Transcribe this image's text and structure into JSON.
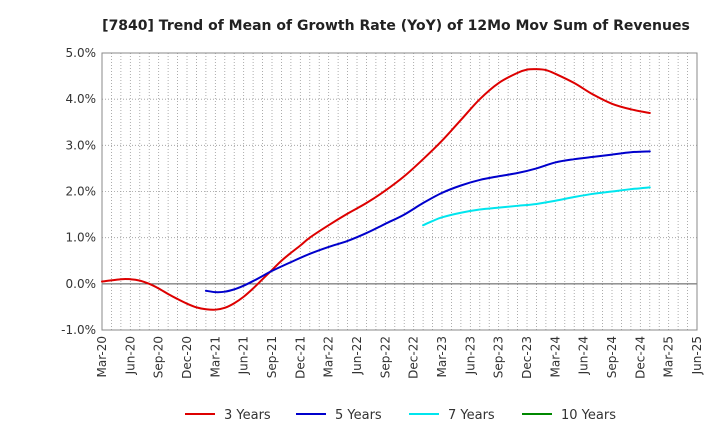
{
  "chart_data": {
    "type": "line",
    "title": "[7840]  Trend of Mean of Growth Rate (YoY) of 12Mo Mov Sum of Revenues",
    "xlabel": "",
    "ylabel": "",
    "ylim": [
      -1.0,
      5.0
    ],
    "y_ticks": [
      -1.0,
      0.0,
      1.0,
      2.0,
      3.0,
      4.0,
      5.0
    ],
    "y_tick_labels": [
      "-1.0%",
      "0.0%",
      "1.0%",
      "2.0%",
      "3.0%",
      "4.0%",
      "5.0%"
    ],
    "x_tick_labels": [
      "Mar-20",
      "Jun-20",
      "Sep-20",
      "Dec-20",
      "Mar-21",
      "Jun-21",
      "Sep-21",
      "Dec-21",
      "Mar-22",
      "Jun-22",
      "Sep-22",
      "Dec-22",
      "Mar-23",
      "Jun-23",
      "Sep-23",
      "Dec-23",
      "Mar-24",
      "Jun-24",
      "Sep-24",
      "Dec-24",
      "Mar-25",
      "Jun-25"
    ],
    "x_index_range": [
      0,
      63
    ],
    "grid": true,
    "legend_position": "bottom",
    "series": [
      {
        "name": "3 Years",
        "color": "#dd0000",
        "points": [
          [
            0,
            0.05
          ],
          [
            2,
            0.1
          ],
          [
            3,
            0.1
          ],
          [
            4,
            0.07
          ],
          [
            5,
            0.0
          ],
          [
            6,
            -0.1
          ],
          [
            7,
            -0.22
          ],
          [
            8,
            -0.33
          ],
          [
            9,
            -0.43
          ],
          [
            10,
            -0.51
          ],
          [
            11,
            -0.55
          ],
          [
            12,
            -0.56
          ],
          [
            13,
            -0.52
          ],
          [
            14,
            -0.42
          ],
          [
            15,
            -0.28
          ],
          [
            16,
            -0.1
          ],
          [
            17,
            0.1
          ],
          [
            18,
            0.3
          ],
          [
            19,
            0.5
          ],
          [
            20,
            0.67
          ],
          [
            21,
            0.83
          ],
          [
            22,
            1.0
          ],
          [
            24,
            1.27
          ],
          [
            26,
            1.52
          ],
          [
            28,
            1.75
          ],
          [
            30,
            2.02
          ],
          [
            32,
            2.33
          ],
          [
            34,
            2.7
          ],
          [
            36,
            3.1
          ],
          [
            38,
            3.55
          ],
          [
            40,
            4.0
          ],
          [
            42,
            4.35
          ],
          [
            44,
            4.57
          ],
          [
            45,
            4.64
          ],
          [
            46,
            4.65
          ],
          [
            47,
            4.63
          ],
          [
            48,
            4.55
          ],
          [
            50,
            4.35
          ],
          [
            52,
            4.1
          ],
          [
            54,
            3.9
          ],
          [
            56,
            3.78
          ],
          [
            58,
            3.7
          ]
        ]
      },
      {
        "name": "5 Years",
        "color": "#0000cc",
        "points": [
          [
            11,
            -0.15
          ],
          [
            12,
            -0.18
          ],
          [
            13,
            -0.17
          ],
          [
            14,
            -0.12
          ],
          [
            15,
            -0.04
          ],
          [
            16,
            0.06
          ],
          [
            17,
            0.17
          ],
          [
            18,
            0.28
          ],
          [
            20,
            0.47
          ],
          [
            22,
            0.65
          ],
          [
            24,
            0.8
          ],
          [
            26,
            0.93
          ],
          [
            28,
            1.1
          ],
          [
            30,
            1.3
          ],
          [
            32,
            1.5
          ],
          [
            34,
            1.75
          ],
          [
            36,
            1.97
          ],
          [
            38,
            2.13
          ],
          [
            40,
            2.25
          ],
          [
            42,
            2.33
          ],
          [
            44,
            2.4
          ],
          [
            46,
            2.5
          ],
          [
            48,
            2.63
          ],
          [
            50,
            2.7
          ],
          [
            52,
            2.75
          ],
          [
            54,
            2.8
          ],
          [
            56,
            2.85
          ],
          [
            58,
            2.87
          ]
        ]
      },
      {
        "name": "7 Years",
        "color": "#00e5ee",
        "points": [
          [
            34,
            1.27
          ],
          [
            35,
            1.36
          ],
          [
            36,
            1.44
          ],
          [
            38,
            1.54
          ],
          [
            40,
            1.61
          ],
          [
            42,
            1.65
          ],
          [
            44,
            1.69
          ],
          [
            46,
            1.73
          ],
          [
            48,
            1.8
          ],
          [
            50,
            1.88
          ],
          [
            52,
            1.95
          ],
          [
            54,
            2.0
          ],
          [
            56,
            2.05
          ],
          [
            58,
            2.09
          ]
        ]
      },
      {
        "name": "10 Years",
        "color": "#008800",
        "points": []
      }
    ]
  }
}
